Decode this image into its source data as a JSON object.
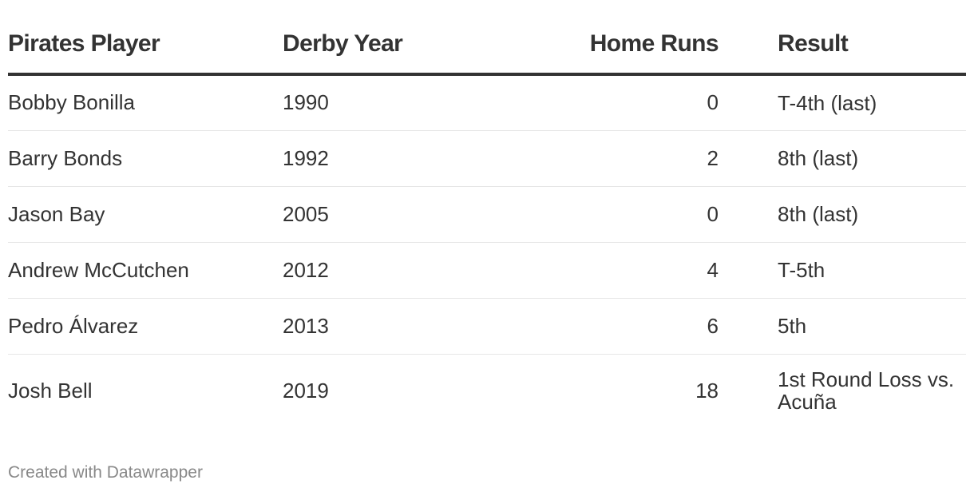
{
  "chart_data": {
    "type": "table",
    "columns": [
      "Pirates Player",
      "Derby Year",
      "Home Runs",
      "Result"
    ],
    "rows": [
      [
        "Bobby Bonilla",
        "1990",
        "0",
        "T-4th (last)"
      ],
      [
        "Barry Bonds",
        "1992",
        "2",
        "8th (last)"
      ],
      [
        "Jason Bay",
        "2005",
        "0",
        "8th (last)"
      ],
      [
        "Andrew McCutchen",
        "2012",
        "4",
        "T-5th"
      ],
      [
        "Pedro Álvarez",
        "2013",
        "6",
        "5th"
      ],
      [
        "Josh Bell",
        "2019",
        "18",
        "1st Round Loss vs. Acuña"
      ]
    ]
  },
  "footer": {
    "credit": "Created with Datawrapper"
  }
}
